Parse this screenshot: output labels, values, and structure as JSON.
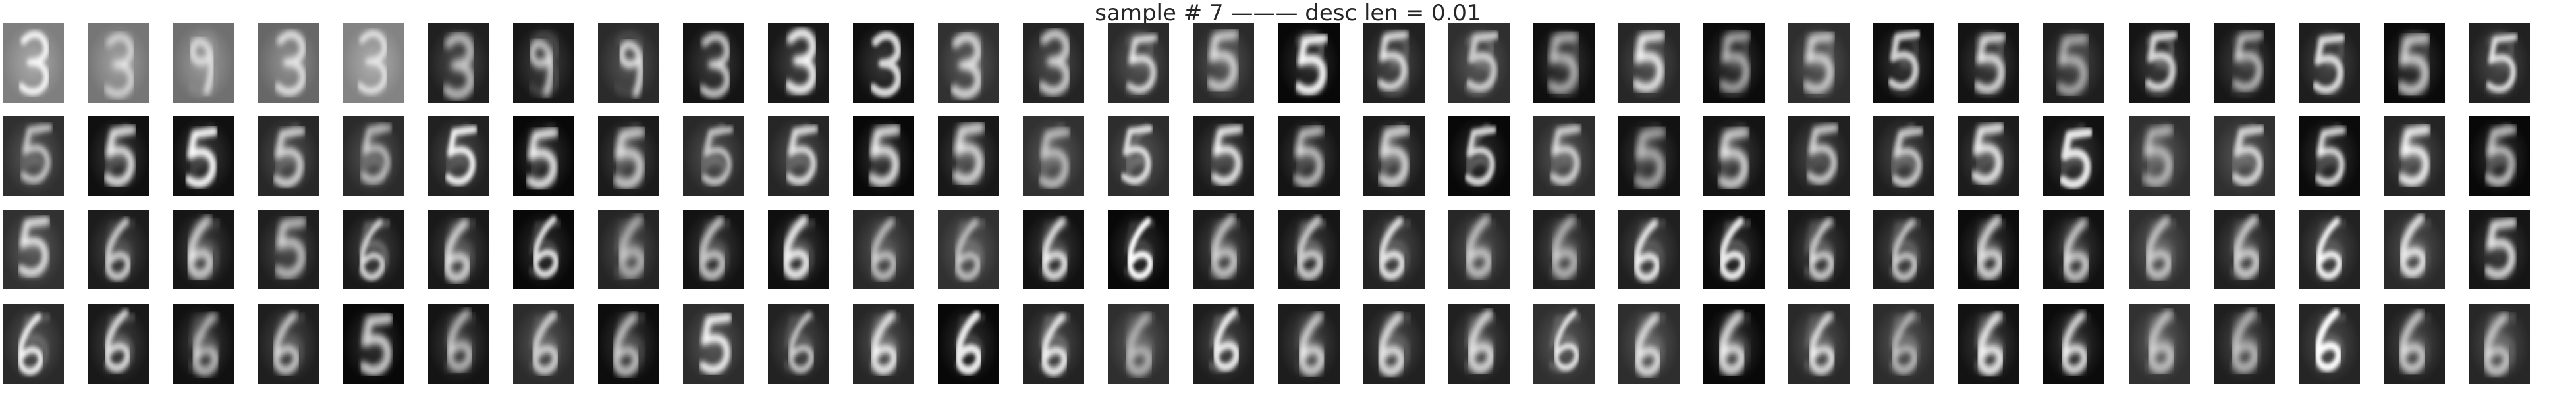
{
  "figure": {
    "title": "sample # 7 ——— desc len = 0.01"
  },
  "grid": {
    "rows": 4,
    "cols": 30
  },
  "digit_progression": [
    [
      "3",
      "3",
      "9",
      "3",
      "3",
      "3",
      "9",
      "9",
      "3",
      "3",
      "3",
      "3",
      "3",
      "5",
      "5",
      "5",
      "5",
      "5",
      "5",
      "5",
      "5",
      "5",
      "5",
      "5",
      "5",
      "5",
      "5",
      "5",
      "5",
      "5"
    ],
    [
      "5",
      "5",
      "5",
      "5",
      "5",
      "5",
      "5",
      "5",
      "5",
      "5",
      "5",
      "5",
      "5",
      "5",
      "5",
      "5",
      "5",
      "5",
      "5",
      "5",
      "5",
      "5",
      "5",
      "5",
      "5",
      "5",
      "5",
      "5",
      "5",
      "5"
    ],
    [
      "5",
      "6",
      "6",
      "5",
      "6",
      "6",
      "6",
      "6",
      "6",
      "6",
      "6",
      "6",
      "6",
      "6",
      "6",
      "6",
      "6",
      "6",
      "6",
      "6",
      "6",
      "6",
      "6",
      "6",
      "6",
      "6",
      "6",
      "6",
      "6",
      "5"
    ],
    [
      "6",
      "6",
      "6",
      "6",
      "5",
      "6",
      "6",
      "6",
      "5",
      "6",
      "6",
      "6",
      "6",
      "6",
      "6",
      "6",
      "6",
      "6",
      "6",
      "6",
      "6",
      "6",
      "6",
      "6",
      "6",
      "6",
      "6",
      "6",
      "6",
      "6"
    ]
  ]
}
